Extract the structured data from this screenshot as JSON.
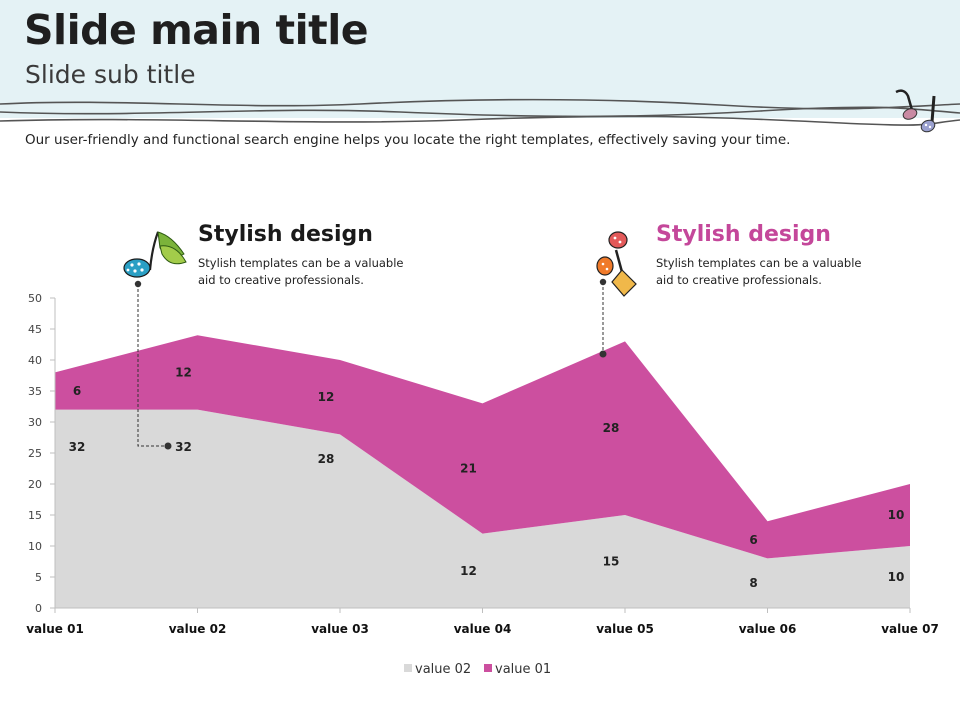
{
  "slide": {
    "title": "Slide main title",
    "subtitle": "Slide sub title",
    "description": "Our user-friendly and functional  search engine helps you locate the right templates, effectively saving your time."
  },
  "callouts": [
    {
      "title": "Stylish design",
      "title_color": "#1a1a1a",
      "text_lines": [
        "Stylish templates  can be a valuable",
        "aid to creative professionals."
      ],
      "icon": "blue-music-note-icon"
    },
    {
      "title": "Stylish design",
      "title_color": "#c4479a",
      "text_lines": [
        "Stylish templates  can be a valuable",
        "aid to creative professionals."
      ],
      "icon": "red-music-note-icon"
    }
  ],
  "colors": {
    "header_band": "#e4f2f5",
    "value_02": "#d9d9d9",
    "value_01": "#cc4f9f",
    "accent_pink": "#c4479a"
  },
  "chart_data": {
    "type": "area",
    "stacked": true,
    "categories": [
      "value 01",
      "value 02",
      "value 03",
      "value 04",
      "value 05",
      "value 06",
      "value 07"
    ],
    "series": [
      {
        "name": "value 02",
        "values": [
          32,
          32,
          28,
          12,
          15,
          8,
          10
        ],
        "color": "#d9d9d9"
      },
      {
        "name": "value 01",
        "values": [
          6,
          12,
          12,
          21,
          28,
          6,
          10
        ],
        "color": "#cc4f9f"
      }
    ],
    "yticks": [
      0,
      5,
      10,
      15,
      20,
      25,
      30,
      35,
      40,
      45,
      50
    ],
    "ylim": [
      0,
      50
    ],
    "legend": "bottom",
    "grid": false
  }
}
